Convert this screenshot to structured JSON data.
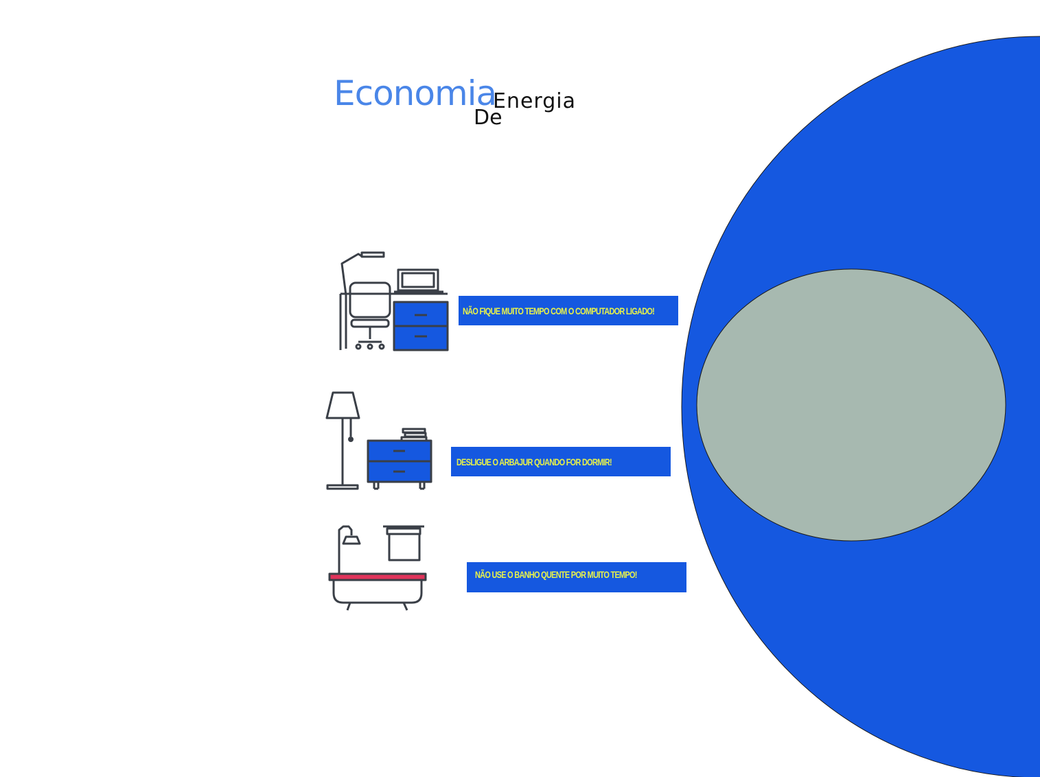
{
  "title": {
    "word1": "Economia",
    "word2": "Energia",
    "word3": "De"
  },
  "tips": [
    {
      "text": "NÃO FIQUE MUITO  TEMPO COM O COMPUTADOR LIGADO!",
      "icon": "desk-computer-icon"
    },
    {
      "text": "DESLIGUE O ARBAJUR QUANDO FOR  DORMIR!",
      "icon": "floor-lamp-nightstand-icon"
    },
    {
      "text": "NÃO  USE O BANHO QUENTE POR MUITO TEMPO!",
      "icon": "bathtub-shower-icon"
    }
  ],
  "colors": {
    "accent_blue": "#1558e0",
    "title_blue": "#4a86e8",
    "tip_text_yellow": "#e8f24a",
    "inner_ellipse_gray": "#a7b9b0",
    "bathtub_rim_red": "#e0335a",
    "line_dark": "#3a3f47"
  }
}
